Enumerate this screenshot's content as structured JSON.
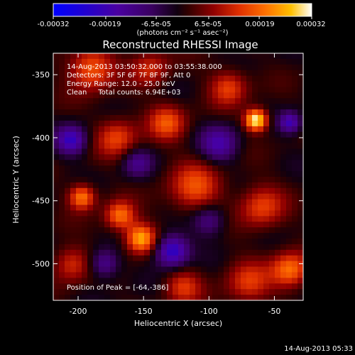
{
  "chart_data": {
    "type": "heatmap",
    "title": "Reconstructed RHESSI Image",
    "xlabel": "Heliocentric X (arcsec)",
    "ylabel": "Heliocentric Y (arcsec)",
    "xlim": [
      -219,
      -28
    ],
    "ylim": [
      -529,
      -333
    ],
    "x_ticks": [
      -200,
      -150,
      -100,
      -50
    ],
    "y_ticks": [
      -500,
      -450,
      -400,
      -350
    ],
    "colorbar": {
      "range": [
        -0.00032,
        0.00032
      ],
      "tick_values": [
        -0.00032,
        -0.00019,
        -6.5e-05,
        6.5e-05,
        0.00019,
        0.00032
      ],
      "tick_labels": [
        "-0.00032",
        "-0.00019",
        "-6.5e-05",
        "6.5e-05",
        "0.00019",
        "0.00032"
      ],
      "units": "(photons cm⁻² s⁻¹ asec⁻²)"
    },
    "annotations": [
      "14-Aug-2013 03:50:32.000 to 03:55:38.000",
      "Detectors: 3F 5F 6F 7F 8F 9F, Att 0",
      "Energy Range: 12.0 - 25.0 keV",
      "Clean     Total counts: 6.94E+03"
    ],
    "peak_label": "Position of Peak = [-64,-386]",
    "peak": {
      "x": -64,
      "y": -386
    },
    "blobs": [
      {
        "x": -64,
        "y": -386,
        "amp": 1.25,
        "sigma": 6
      },
      {
        "x": -152,
        "y": -480,
        "amp": 0.95,
        "sigma": 8
      },
      {
        "x": -168,
        "y": -462,
        "amp": 0.75,
        "sigma": 8
      },
      {
        "x": -197,
        "y": -447,
        "amp": 0.8,
        "sigma": 7
      },
      {
        "x": -190,
        "y": -345,
        "amp": 0.7,
        "sigma": 12
      },
      {
        "x": -170,
        "y": -400,
        "amp": 0.55,
        "sigma": 11
      },
      {
        "x": -132,
        "y": -388,
        "amp": 0.6,
        "sigma": 10
      },
      {
        "x": -110,
        "y": -440,
        "amp": 0.6,
        "sigma": 14
      },
      {
        "x": -60,
        "y": -455,
        "amp": 0.55,
        "sigma": 12
      },
      {
        "x": -38,
        "y": -505,
        "amp": 0.75,
        "sigma": 10
      },
      {
        "x": -70,
        "y": -515,
        "amp": 0.5,
        "sigma": 12
      },
      {
        "x": -120,
        "y": -518,
        "amp": 0.5,
        "sigma": 10
      },
      {
        "x": -205,
        "y": -500,
        "amp": 0.5,
        "sigma": 10
      },
      {
        "x": -85,
        "y": -360,
        "amp": 0.55,
        "sigma": 10
      },
      {
        "x": -145,
        "y": -345,
        "amp": 0.45,
        "sigma": 10
      },
      {
        "x": -205,
        "y": -402,
        "amp": -0.75,
        "sigma": 8
      },
      {
        "x": -128,
        "y": -490,
        "amp": -0.9,
        "sigma": 9
      },
      {
        "x": -92,
        "y": -405,
        "amp": -0.6,
        "sigma": 10
      },
      {
        "x": -38,
        "y": -388,
        "amp": -0.7,
        "sigma": 6
      },
      {
        "x": -100,
        "y": -465,
        "amp": -0.5,
        "sigma": 9
      },
      {
        "x": -180,
        "y": -500,
        "amp": -0.55,
        "sigma": 8
      },
      {
        "x": -155,
        "y": -420,
        "amp": -0.45,
        "sigma": 8
      }
    ]
  },
  "footer": {
    "timestamp": "14-Aug-2013 05:33"
  }
}
